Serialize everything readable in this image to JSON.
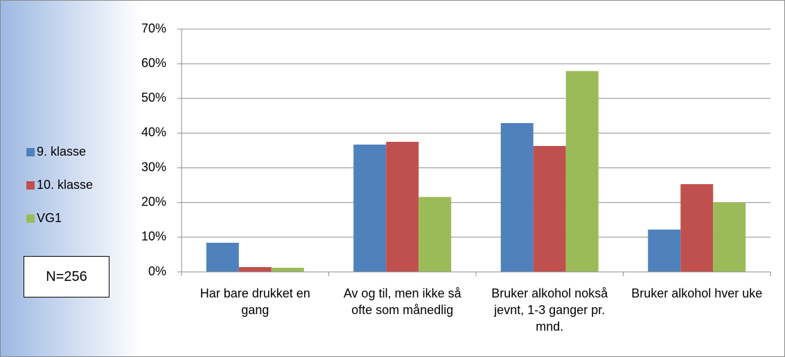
{
  "chart_data": {
    "type": "bar",
    "categories": [
      "Har bare drukket en gang",
      "Av og til, men ikke så ofte som månedlig",
      "Bruker alkohol nokså jevnt, 1-3 ganger pr. mnd.",
      "Bruker alkohol hver uke"
    ],
    "series": [
      {
        "name": "9. klasse",
        "color": "#4f81bd",
        "values": [
          8.4,
          36.7,
          42.9,
          12.2
        ]
      },
      {
        "name": "10. klasse",
        "color": "#c0504d",
        "values": [
          1.4,
          37.5,
          36.3,
          25.3
        ]
      },
      {
        "name": "VG1",
        "color": "#9bbb59",
        "values": [
          1.2,
          21.6,
          57.9,
          20.0
        ]
      }
    ],
    "ylim": [
      0,
      70
    ],
    "yticks": [
      {
        "value": 0,
        "label": "0%"
      },
      {
        "value": 10,
        "label": "10%"
      },
      {
        "value": 20,
        "label": "20%"
      },
      {
        "value": 30,
        "label": "30%"
      },
      {
        "value": 40,
        "label": "40%"
      },
      {
        "value": 50,
        "label": "50%"
      },
      {
        "value": 60,
        "label": "60%"
      },
      {
        "value": 70,
        "label": "70%"
      }
    ],
    "grid": true,
    "legend": "left",
    "annotation": "N=256"
  }
}
